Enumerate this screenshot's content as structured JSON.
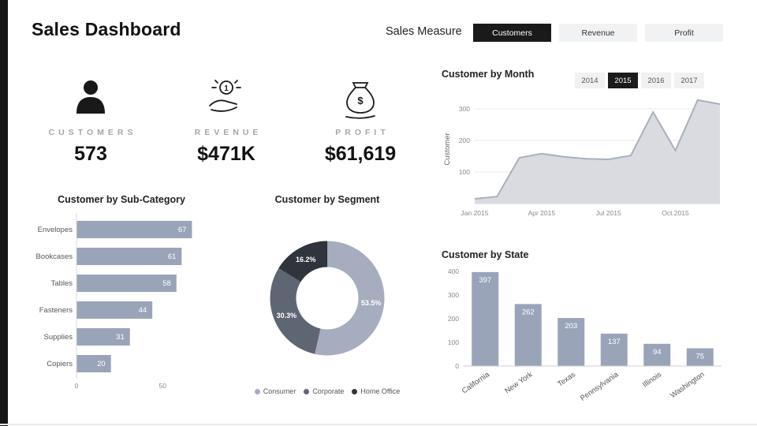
{
  "page": {
    "title": "Sales Dashboard",
    "measure_label": "Sales Measure"
  },
  "measure_buttons": [
    {
      "label": "Customers",
      "selected": true
    },
    {
      "label": "Revenue",
      "selected": false
    },
    {
      "label": "Profit",
      "selected": false
    }
  ],
  "kpis": [
    {
      "label": "CUSTOMERS",
      "value": "573",
      "icon": "person-icon"
    },
    {
      "label": "REVENUE",
      "value": "$471K",
      "icon": "coin-hand-icon"
    },
    {
      "label": "PROFIT",
      "value": "$61,619",
      "icon": "money-bag-icon"
    }
  ],
  "colors": {
    "accent": "#161616",
    "bar": "#9aa4b9",
    "area_fill": "#d9dbe1",
    "area_line": "#a9b0bd"
  },
  "chart_data": [
    {
      "id": "month",
      "type": "area",
      "title": "Customer by Month",
      "ylabel": "Customer",
      "year_filters": [
        {
          "label": "2014",
          "selected": false
        },
        {
          "label": "2015",
          "selected": true
        },
        {
          "label": "2016",
          "selected": false
        },
        {
          "label": "2017",
          "selected": false
        }
      ],
      "x_ticks": [
        "Jan 2015",
        "Apr 2015",
        "Jul 2015",
        "Oct 2015"
      ],
      "x_tick_index": [
        0,
        3,
        6,
        9
      ],
      "values": [
        15,
        22,
        145,
        158,
        148,
        142,
        140,
        152,
        290,
        168,
        328,
        315
      ],
      "y_ticks": [
        100,
        200,
        300
      ],
      "ylim": [
        0,
        345
      ],
      "line_color": "#a9b0bd",
      "fill": "#d9dbe1"
    },
    {
      "id": "subcategory",
      "type": "bar-h",
      "title": "Customer by Sub-Category",
      "categories": [
        "Envelopes",
        "Bookcases",
        "Tables",
        "Fasteners",
        "Supplies",
        "Copiers"
      ],
      "values": [
        67,
        61,
        58,
        44,
        31,
        20
      ],
      "x_ticks": [
        0,
        50
      ],
      "xlim": [
        0,
        70
      ],
      "bar_color": "#9aa4b9"
    },
    {
      "id": "segment",
      "type": "donut",
      "title": "Customer by Segment",
      "slices": [
        {
          "label": "Consumer",
          "pct": 53.5,
          "color": "#a5adbf"
        },
        {
          "label": "Corporate",
          "pct": 30.3,
          "color": "#5f6673"
        },
        {
          "label": "Home Office",
          "pct": 16.2,
          "color": "#30343c"
        }
      ]
    },
    {
      "id": "state",
      "type": "bar-v",
      "title": "Customer by State",
      "categories": [
        "California",
        "New York",
        "Texas",
        "Pennsylvania",
        "Illinois",
        "Washington"
      ],
      "values": [
        397,
        262,
        203,
        137,
        94,
        75
      ],
      "y_ticks": [
        0,
        100,
        200,
        300,
        400
      ],
      "ylim": [
        0,
        400
      ],
      "bar_color": "#9aa4b9"
    }
  ]
}
